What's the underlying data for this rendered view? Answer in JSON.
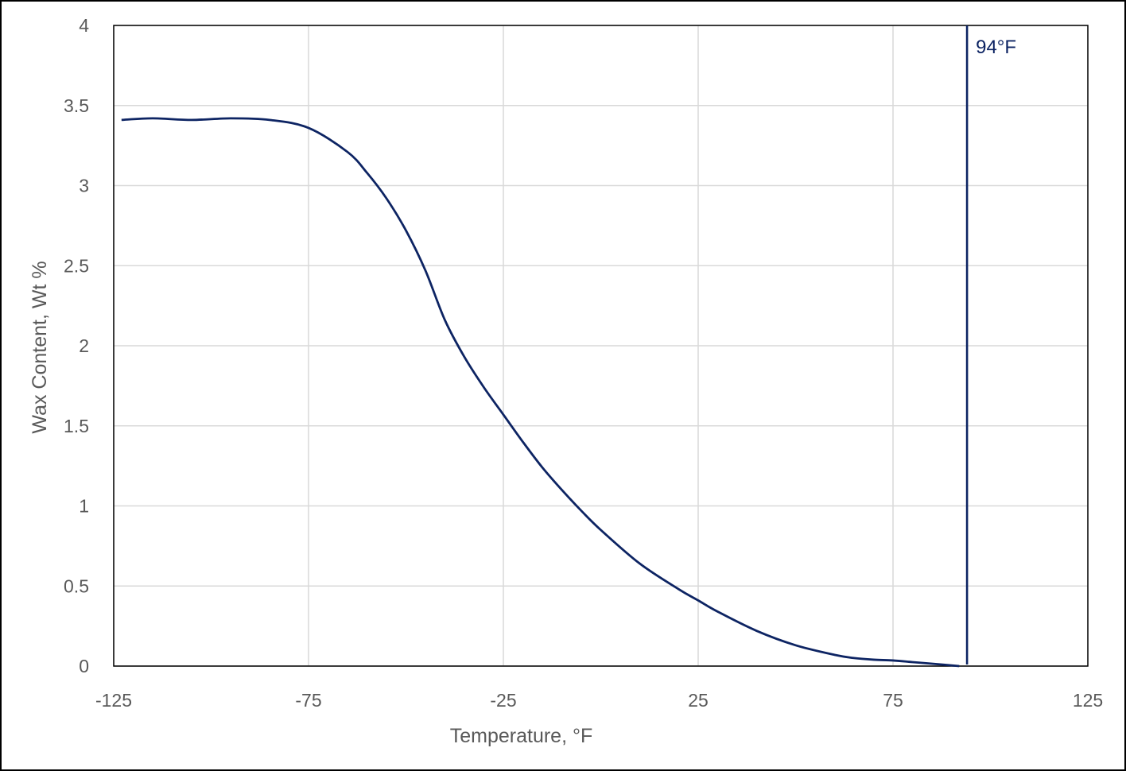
{
  "chart_data": {
    "type": "line",
    "title": "",
    "xlabel": "Temperature, °F",
    "ylabel": "Wax Content, Wt %",
    "xlim": [
      -125,
      125
    ],
    "ylim": [
      0,
      4
    ],
    "x_ticks": [
      "-125",
      "-75",
      "-25",
      "25",
      "75",
      "125"
    ],
    "y_ticks": [
      "0",
      "0.5",
      "1",
      "1.5",
      "2",
      "2.5",
      "3",
      "3.5",
      "4"
    ],
    "grid": true,
    "legend": "none",
    "colors": {
      "series": "#0d2463",
      "grid": "#d9d9d9",
      "plot_border": "#000000",
      "text": "#595959"
    },
    "series": [
      {
        "x": [
          -123,
          -115,
          -105,
          -95,
          -85,
          -75,
          -65,
          -60,
          -55,
          -50,
          -45,
          -40,
          -35,
          -30,
          -25,
          -20,
          -15,
          -10,
          -5,
          0,
          10,
          20,
          25,
          30,
          40,
          50,
          60,
          65,
          70,
          75,
          80,
          85,
          92
        ],
        "y": [
          3.41,
          3.42,
          3.41,
          3.42,
          3.41,
          3.36,
          3.21,
          3.08,
          2.92,
          2.72,
          2.47,
          2.16,
          1.93,
          1.74,
          1.57,
          1.4,
          1.24,
          1.1,
          0.97,
          0.85,
          0.64,
          0.48,
          0.41,
          0.34,
          0.22,
          0.13,
          0.07,
          0.05,
          0.04,
          0.035,
          0.025,
          0.015,
          0.0
        ]
      }
    ],
    "annotations": [
      {
        "type": "vertical_line",
        "x": 94,
        "label": "94°F"
      }
    ]
  }
}
